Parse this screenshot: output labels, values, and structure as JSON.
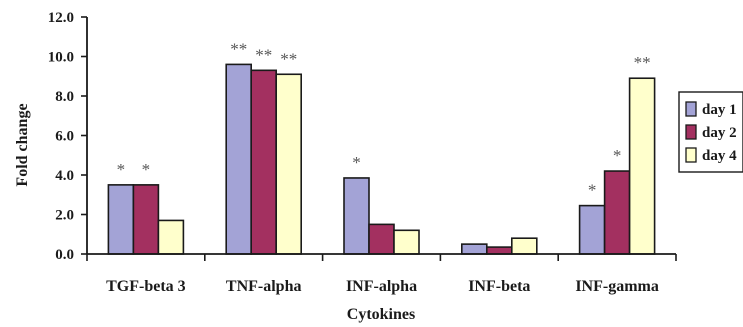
{
  "chart_data": {
    "type": "bar",
    "title": "",
    "xlabel": "Cytokines",
    "ylabel": "Fold change",
    "ylim": [
      0,
      12
    ],
    "yticks": [
      "0.0",
      "2.0",
      "4.0",
      "6.0",
      "8.0",
      "10.0",
      "12.0"
    ],
    "categories": [
      "TGF-beta 3",
      "TNF-alpha",
      "INF-alpha",
      "INF-beta",
      "INF-gamma"
    ],
    "series": [
      {
        "name": "day 1",
        "color": "#a3a3d6",
        "values": [
          3.5,
          9.6,
          3.85,
          0.5,
          2.45
        ]
      },
      {
        "name": "day 2",
        "color": "#a33060",
        "values": [
          3.5,
          9.3,
          1.5,
          0.35,
          4.2
        ]
      },
      {
        "name": "day 4",
        "color": "#ffffcc",
        "values": [
          1.7,
          9.1,
          1.2,
          0.8,
          8.9
        ]
      }
    ],
    "annotations": [
      [
        "*",
        "*",
        ""
      ],
      [
        "**",
        "**",
        "**"
      ],
      [
        "*",
        "",
        ""
      ],
      [
        "",
        "",
        ""
      ],
      [
        "*",
        "*",
        "**"
      ]
    ],
    "legend": "right",
    "grid": false
  }
}
